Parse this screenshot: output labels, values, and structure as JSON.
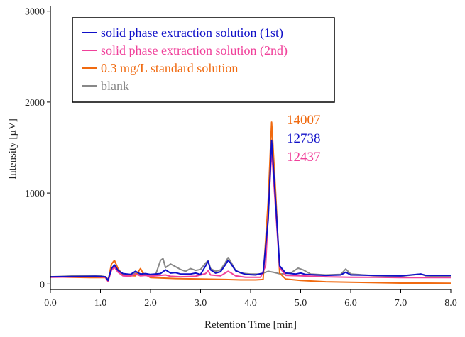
{
  "chart_data": {
    "type": "line",
    "title": "",
    "xlabel": "Retention Time [min]",
    "ylabel": "Intensity [µV]",
    "xlim": [
      0.0,
      8.0
    ],
    "ylim": [
      -60,
      3060
    ],
    "x_ticks": [
      "0.0",
      "1.0",
      "2.0",
      "3.0",
      "4.0",
      "5.0",
      "6.0",
      "7.0",
      "8.0"
    ],
    "y_ticks": [
      "0",
      "1000",
      "2000",
      "3000"
    ],
    "grid": false,
    "legend_position": "top-left",
    "series": [
      {
        "name": "solid phase extraction solution (1st)",
        "color": "#1010c8",
        "points": [
          [
            0.0,
            80
          ],
          [
            0.5,
            82
          ],
          [
            0.9,
            85
          ],
          [
            1.1,
            80
          ],
          [
            1.15,
            40
          ],
          [
            1.22,
            170
          ],
          [
            1.28,
            210
          ],
          [
            1.35,
            150
          ],
          [
            1.45,
            115
          ],
          [
            1.6,
            105
          ],
          [
            1.7,
            140
          ],
          [
            1.8,
            110
          ],
          [
            1.9,
            115
          ],
          [
            2.0,
            105
          ],
          [
            2.2,
            115
          ],
          [
            2.3,
            155
          ],
          [
            2.4,
            120
          ],
          [
            2.5,
            125
          ],
          [
            2.6,
            110
          ],
          [
            2.8,
            110
          ],
          [
            2.9,
            120
          ],
          [
            3.0,
            105
          ],
          [
            3.1,
            200
          ],
          [
            3.15,
            250
          ],
          [
            3.2,
            155
          ],
          [
            3.3,
            120
          ],
          [
            3.4,
            135
          ],
          [
            3.5,
            215
          ],
          [
            3.55,
            260
          ],
          [
            3.6,
            230
          ],
          [
            3.7,
            145
          ],
          [
            3.9,
            105
          ],
          [
            4.1,
            100
          ],
          [
            4.25,
            120
          ],
          [
            4.35,
            700
          ],
          [
            4.42,
            1580
          ],
          [
            4.5,
            900
          ],
          [
            4.58,
            200
          ],
          [
            4.7,
            120
          ],
          [
            4.9,
            110
          ],
          [
            5.0,
            120
          ],
          [
            5.1,
            105
          ],
          [
            5.5,
            95
          ],
          [
            5.8,
            100
          ],
          [
            5.9,
            130
          ],
          [
            6.0,
            100
          ],
          [
            6.5,
            95
          ],
          [
            7.0,
            90
          ],
          [
            7.4,
            110
          ],
          [
            7.5,
            95
          ],
          [
            8.0,
            95
          ]
        ]
      },
      {
        "name": "solid phase extraction solution (2nd)",
        "color": "#f0409a",
        "points": [
          [
            0.0,
            75
          ],
          [
            0.5,
            78
          ],
          [
            0.9,
            80
          ],
          [
            1.1,
            75
          ],
          [
            1.15,
            30
          ],
          [
            1.22,
            150
          ],
          [
            1.28,
            185
          ],
          [
            1.35,
            130
          ],
          [
            1.45,
            90
          ],
          [
            1.6,
            85
          ],
          [
            1.7,
            110
          ],
          [
            1.8,
            90
          ],
          [
            1.9,
            95
          ],
          [
            2.0,
            85
          ],
          [
            2.3,
            100
          ],
          [
            2.4,
            85
          ],
          [
            2.6,
            80
          ],
          [
            2.9,
            85
          ],
          [
            3.1,
            115
          ],
          [
            3.15,
            145
          ],
          [
            3.2,
            100
          ],
          [
            3.4,
            90
          ],
          [
            3.55,
            140
          ],
          [
            3.6,
            125
          ],
          [
            3.7,
            90
          ],
          [
            3.9,
            75
          ],
          [
            4.2,
            75
          ],
          [
            4.3,
            200
          ],
          [
            4.42,
            1480
          ],
          [
            4.5,
            820
          ],
          [
            4.58,
            180
          ],
          [
            4.7,
            95
          ],
          [
            5.0,
            90
          ],
          [
            5.5,
            80
          ],
          [
            6.0,
            75
          ],
          [
            6.5,
            75
          ],
          [
            7.0,
            70
          ],
          [
            7.5,
            70
          ],
          [
            8.0,
            70
          ]
        ]
      },
      {
        "name": "0.3 mg/L standard solution",
        "color": "#f06a10",
        "points": [
          [
            0.0,
            80
          ],
          [
            0.4,
            75
          ],
          [
            0.8,
            70
          ],
          [
            1.1,
            70
          ],
          [
            1.15,
            30
          ],
          [
            1.22,
            220
          ],
          [
            1.28,
            260
          ],
          [
            1.35,
            170
          ],
          [
            1.45,
            95
          ],
          [
            1.7,
            90
          ],
          [
            1.8,
            170
          ],
          [
            1.85,
            120
          ],
          [
            2.0,
            70
          ],
          [
            2.5,
            60
          ],
          [
            3.0,
            55
          ],
          [
            3.5,
            50
          ],
          [
            3.8,
            45
          ],
          [
            4.1,
            45
          ],
          [
            4.25,
            50
          ],
          [
            4.35,
            900
          ],
          [
            4.42,
            1780
          ],
          [
            4.5,
            1000
          ],
          [
            4.58,
            120
          ],
          [
            4.7,
            55
          ],
          [
            5.0,
            40
          ],
          [
            5.5,
            25
          ],
          [
            6.0,
            20
          ],
          [
            6.5,
            15
          ],
          [
            7.0,
            10
          ],
          [
            7.5,
            10
          ],
          [
            8.0,
            8
          ]
        ]
      },
      {
        "name": "blank",
        "color": "#888888",
        "points": [
          [
            0.0,
            80
          ],
          [
            0.3,
            85
          ],
          [
            0.5,
            90
          ],
          [
            0.8,
            95
          ],
          [
            1.0,
            90
          ],
          [
            1.1,
            80
          ],
          [
            1.15,
            50
          ],
          [
            1.22,
            170
          ],
          [
            1.28,
            190
          ],
          [
            1.35,
            140
          ],
          [
            1.45,
            100
          ],
          [
            1.6,
            95
          ],
          [
            1.7,
            120
          ],
          [
            1.8,
            100
          ],
          [
            2.0,
            90
          ],
          [
            2.1,
            100
          ],
          [
            2.2,
            260
          ],
          [
            2.25,
            280
          ],
          [
            2.3,
            180
          ],
          [
            2.4,
            220
          ],
          [
            2.5,
            190
          ],
          [
            2.6,
            160
          ],
          [
            2.7,
            140
          ],
          [
            2.8,
            170
          ],
          [
            2.9,
            150
          ],
          [
            3.0,
            160
          ],
          [
            3.1,
            230
          ],
          [
            3.15,
            255
          ],
          [
            3.2,
            170
          ],
          [
            3.3,
            140
          ],
          [
            3.4,
            155
          ],
          [
            3.5,
            240
          ],
          [
            3.55,
            290
          ],
          [
            3.6,
            250
          ],
          [
            3.7,
            150
          ],
          [
            3.8,
            120
          ],
          [
            4.0,
            110
          ],
          [
            4.2,
            110
          ],
          [
            4.35,
            140
          ],
          [
            4.45,
            130
          ],
          [
            4.6,
            110
          ],
          [
            4.8,
            120
          ],
          [
            4.95,
            175
          ],
          [
            5.05,
            155
          ],
          [
            5.2,
            110
          ],
          [
            5.5,
            100
          ],
          [
            5.8,
            105
          ],
          [
            5.9,
            165
          ],
          [
            6.0,
            110
          ],
          [
            6.5,
            90
          ],
          [
            7.0,
            85
          ],
          [
            7.4,
            110
          ],
          [
            7.5,
            90
          ],
          [
            8.0,
            80
          ]
        ]
      }
    ],
    "annotations": [
      {
        "text": "14007",
        "color": "#f06a10"
      },
      {
        "text": "12738",
        "color": "#1010c8"
      },
      {
        "text": "12437",
        "color": "#f0409a"
      }
    ]
  }
}
